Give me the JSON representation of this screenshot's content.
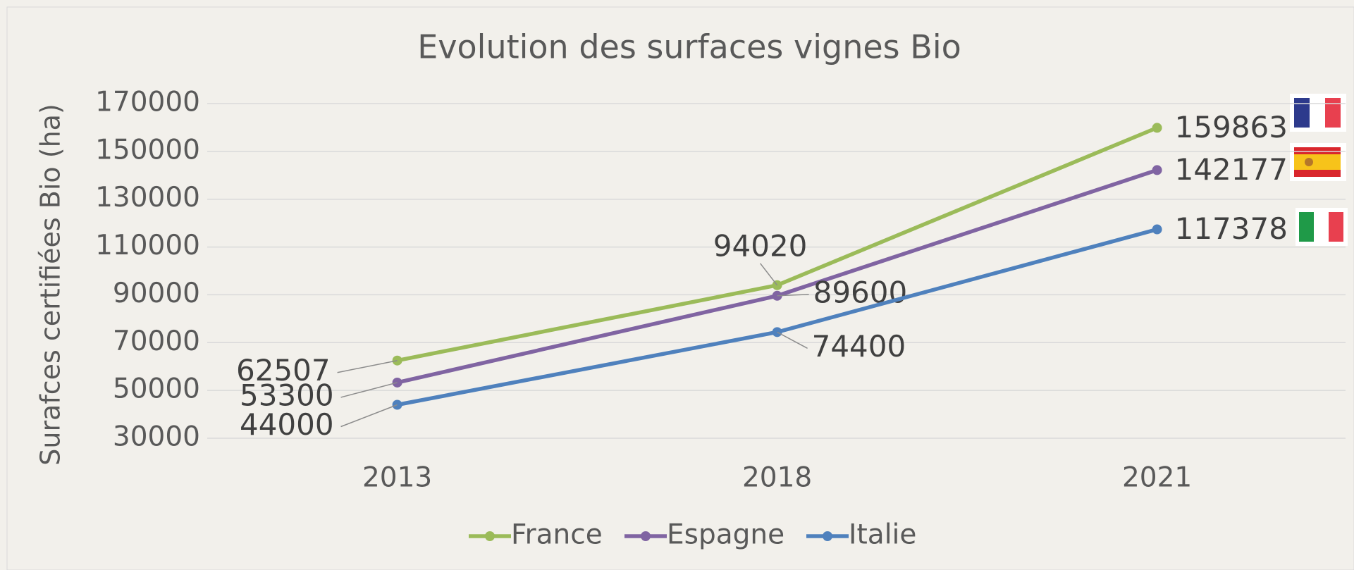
{
  "chart_data": {
    "type": "line",
    "title": "Evolution des surfaces vignes Bio",
    "y_label": "Surafces certifiées Bio (ha)",
    "categories": [
      "2013",
      "2018",
      "2021"
    ],
    "series": [
      {
        "name": "France",
        "color": "#9bbb59",
        "values": [
          62507,
          94020,
          159863
        ]
      },
      {
        "name": "Espagne",
        "color": "#8064a2",
        "values": [
          53300,
          89600,
          142177
        ]
      },
      {
        "name": "Italie",
        "color": "#4f81bd",
        "values": [
          44000,
          74400,
          117378
        ]
      }
    ],
    "ylim": [
      30000,
      170000
    ],
    "yticks": [
      30000,
      50000,
      70000,
      90000,
      110000,
      130000,
      150000,
      170000
    ],
    "grid": true,
    "legend": "bottom"
  }
}
